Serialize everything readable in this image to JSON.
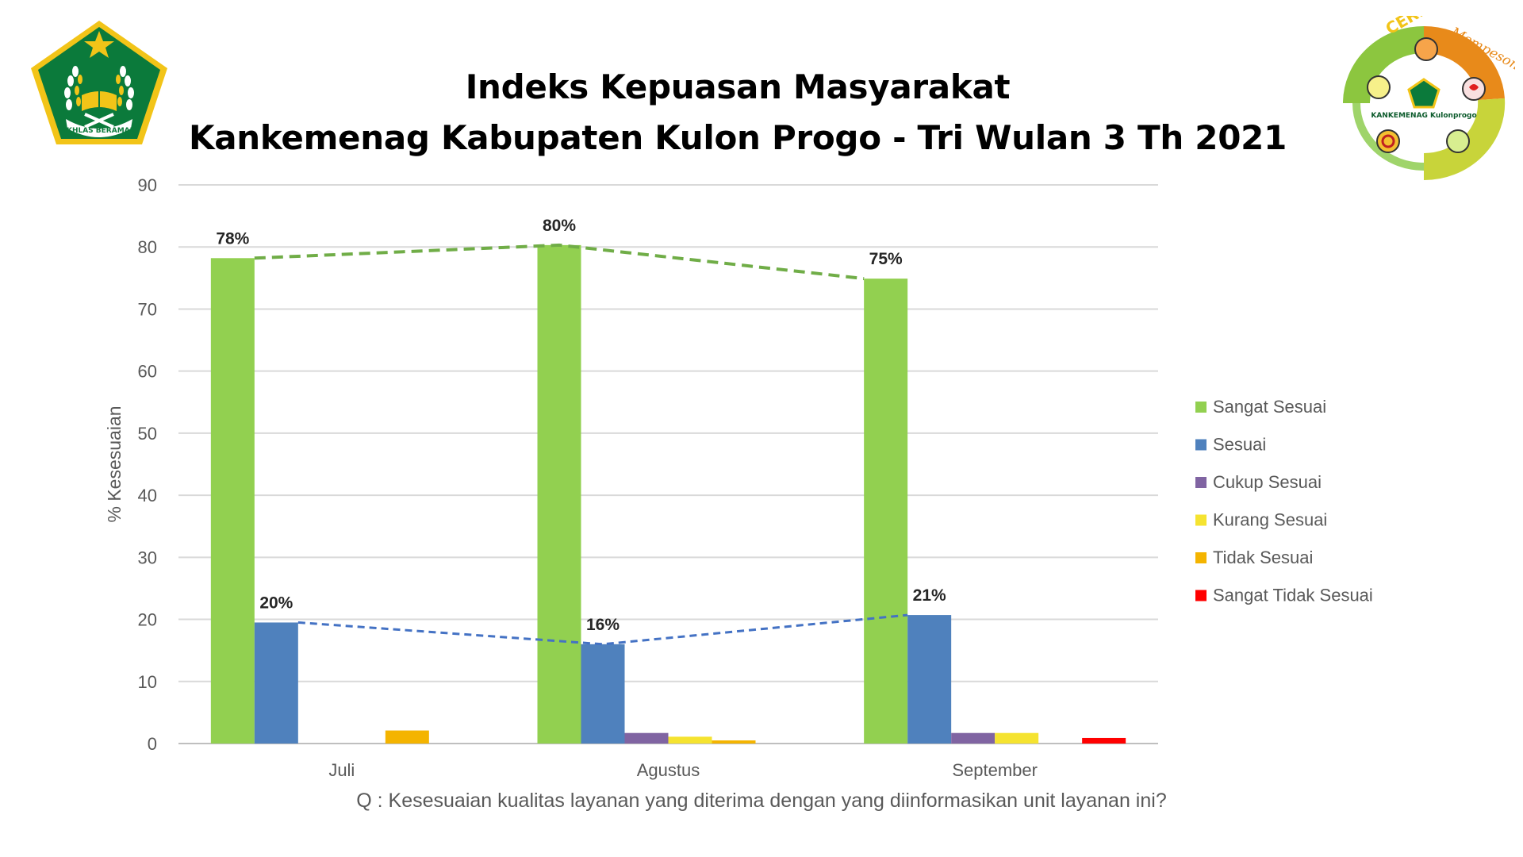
{
  "header": {
    "title_line1": "Indeks Kepuasan Masyarakat",
    "title_line2": "Kankemenag Kabupaten Kulon Progo - Tri Wulan 3 Th 2021"
  },
  "logos": {
    "left": {
      "name": "kemenag-logo",
      "text": "IKHLAS BERAMAL",
      "colors": [
        "#0b7a3b",
        "#f2c418"
      ]
    },
    "right": {
      "name": "ceria-mempesona-logo",
      "text": [
        "CERIA",
        "Mempesona",
        "KANKEMENAG Kulonprogo"
      ]
    }
  },
  "chart_data": {
    "type": "bar",
    "categories": [
      "Juli",
      "Agustus",
      "September"
    ],
    "series": [
      {
        "name": "Sangat Sesuai",
        "color": "#92d050",
        "values": [
          78.2,
          80.3,
          74.9
        ]
      },
      {
        "name": "Sesuai",
        "color": "#4f81bd",
        "values": [
          19.5,
          16.0,
          20.7
        ]
      },
      {
        "name": "Cukup Sesuai",
        "color": "#8064a2",
        "values": [
          0,
          1.7,
          1.7
        ]
      },
      {
        "name": "Kurang Sesuai",
        "color": "#f5e330",
        "values": [
          0,
          1.1,
          1.7
        ]
      },
      {
        "name": "Tidak Sesuai",
        "color": "#f4b400",
        "values": [
          2.1,
          0.5,
          0
        ]
      },
      {
        "name": "Sangat Tidak Sesuai",
        "color": "#ff0000",
        "values": [
          0,
          0,
          0.9
        ]
      }
    ],
    "data_labels": {
      "Sangat Sesuai": [
        "78%",
        "80%",
        "75%"
      ],
      "Sesuai": [
        "20%",
        "16%",
        "21%"
      ]
    },
    "trend_lines": [
      {
        "series": "Sangat Sesuai",
        "style": "dashed",
        "color": "#70ad47"
      },
      {
        "series": "Sesuai",
        "style": "dashed",
        "color": "#4472c4"
      }
    ],
    "ylabel": "% Kesesuaian",
    "xlabel": "Q : Kesesuaian kualitas layanan yang diterima dengan yang diinformasikan unit layanan ini?",
    "ylim": [
      0,
      90
    ],
    "yticks": [
      0,
      10,
      20,
      30,
      40,
      50,
      60,
      70,
      80,
      90
    ],
    "grid": true,
    "legend_position": "right"
  }
}
